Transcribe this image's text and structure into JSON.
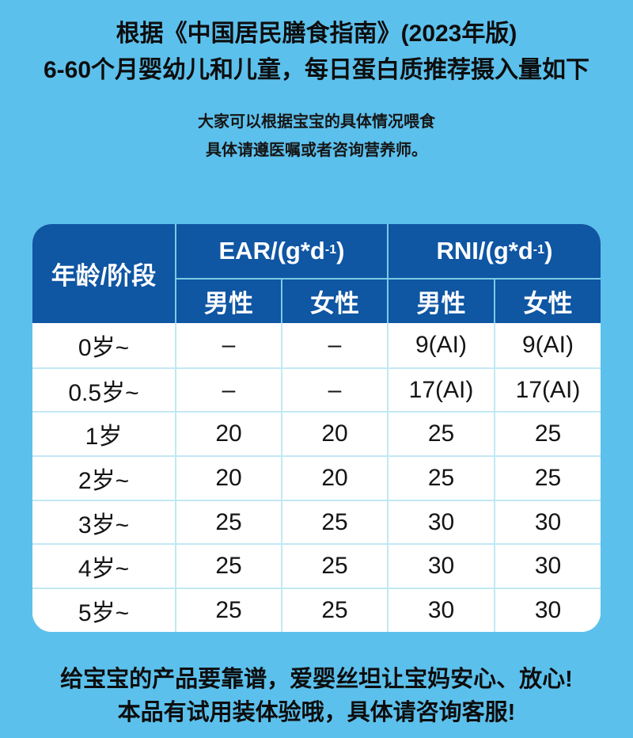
{
  "page": {
    "bg_color": "#5cc0ec",
    "title_line1": "根据《中国居民膳食指南》(2023年版)",
    "title_line2": "6-60个月婴幼儿和儿童，每日蛋白质推荐摄入量如下",
    "subtitle_line1": "大家可以根据宝宝的具体情况喂食",
    "subtitle_line2": "具体请遵医嘱或者咨询营养师。",
    "footer_line1": "给宝宝的产品要靠谱，爱婴丝坦让宝妈安心、放心!",
    "footer_line2": "本品有试用装体验哦，具体请咨询客服!"
  },
  "table": {
    "header_bg_color": "#0f56a3",
    "separator_color": "#c2e8f4",
    "age_header": "年龄/阶段",
    "ear_header": {
      "prefix": "EAR/(g*d ",
      "sup": "-1",
      "suffix": ")"
    },
    "rni_header": {
      "prefix": "RNI/(g*d",
      "sup": "-1",
      "suffix": " )"
    },
    "sub_headers": {
      "male": "男性",
      "female": "女性"
    },
    "columns": [
      "年龄/阶段",
      "EAR 男性",
      "EAR 女性",
      "RNI 男性",
      "RNI 女性"
    ],
    "rows": [
      {
        "age": "0岁~",
        "ear_m": "–",
        "ear_f": "–",
        "rni_m": "9(AI)",
        "rni_f": "9(AI)"
      },
      {
        "age": "0.5岁~",
        "ear_m": "–",
        "ear_f": "–",
        "rni_m": "17(AI)",
        "rni_f": "17(AI)"
      },
      {
        "age": "1岁",
        "ear_m": "20",
        "ear_f": "20",
        "rni_m": "25",
        "rni_f": "25"
      },
      {
        "age": "2岁~",
        "ear_m": "20",
        "ear_f": "20",
        "rni_m": "25",
        "rni_f": "25"
      },
      {
        "age": "3岁~",
        "ear_m": "25",
        "ear_f": "25",
        "rni_m": "30",
        "rni_f": "30"
      },
      {
        "age": "4岁~",
        "ear_m": "25",
        "ear_f": "25",
        "rni_m": "30",
        "rni_f": "30"
      },
      {
        "age": "5岁~",
        "ear_m": "25",
        "ear_f": "25",
        "rni_m": "30",
        "rni_f": "30"
      }
    ]
  }
}
